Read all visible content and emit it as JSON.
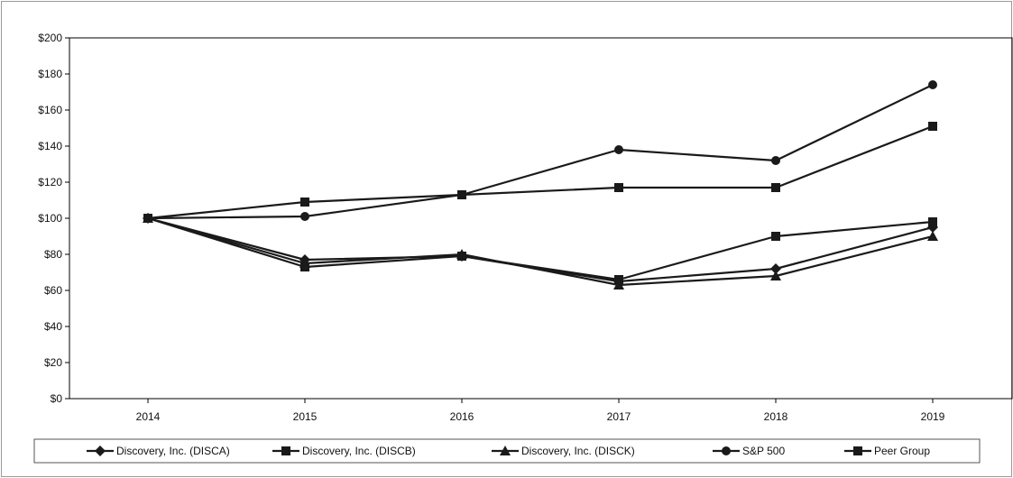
{
  "chart_data": {
    "type": "line",
    "title": "",
    "xlabel": "",
    "ylabel": "",
    "categories": [
      "2014",
      "2015",
      "2016",
      "2017",
      "2018",
      "2019"
    ],
    "y_tick_labels": [
      "$0",
      "$20",
      "$40",
      "$60",
      "$80",
      "$100",
      "$120",
      "$140",
      "$160",
      "$180",
      "$200"
    ],
    "ylim": [
      0,
      200
    ],
    "grid": false,
    "legend_position": "bottom",
    "series": [
      {
        "name": "Discovery, Inc. (DISCA)",
        "marker": "diamond",
        "values": [
          100,
          77,
          79,
          65,
          72,
          95
        ]
      },
      {
        "name": "Discovery, Inc. (DISCB)",
        "marker": "square",
        "values": [
          100,
          73,
          79,
          66,
          90,
          98
        ]
      },
      {
        "name": "Discovery, Inc. (DISCK)",
        "marker": "triangle",
        "values": [
          100,
          75,
          80,
          63,
          68,
          90
        ]
      },
      {
        "name": "S&P 500",
        "marker": "circle",
        "values": [
          100,
          101,
          113,
          138,
          132,
          174
        ]
      },
      {
        "name": "Peer Group",
        "marker": "square",
        "values": [
          100,
          109,
          113,
          117,
          117,
          151
        ]
      }
    ],
    "colors": {
      "line": "#1a1a1a",
      "axis": "#000000",
      "frame": "#9a9a9a"
    }
  }
}
